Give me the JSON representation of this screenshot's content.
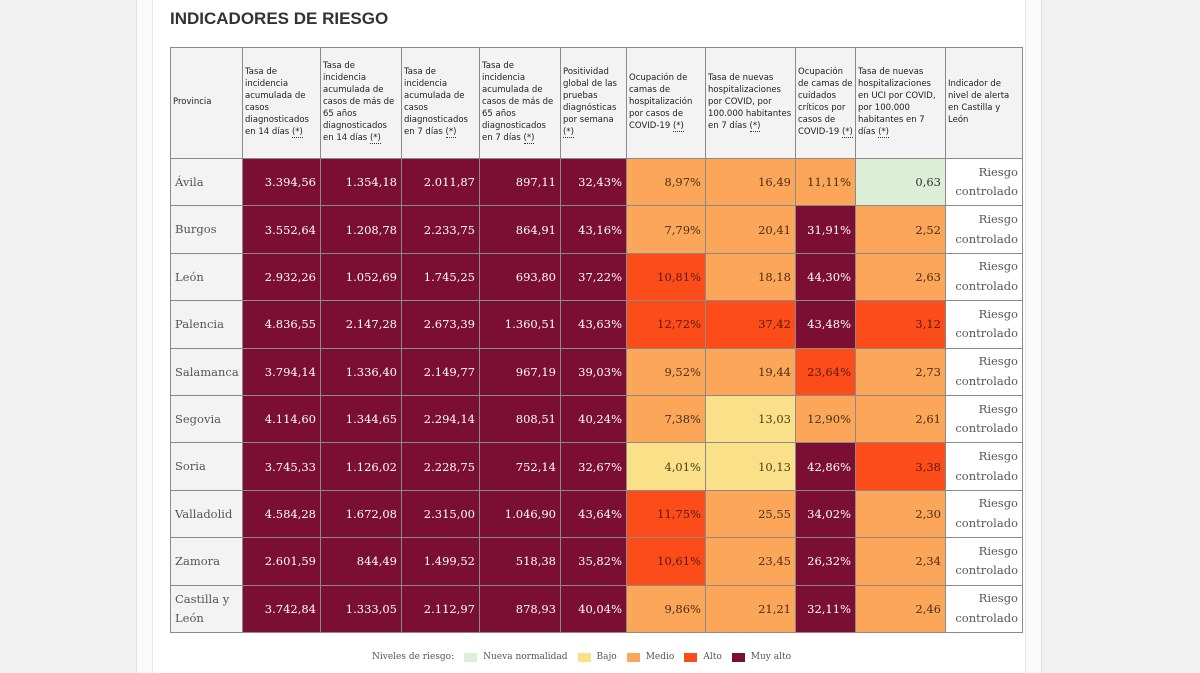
{
  "title": "INDICADORES DE RIESGO",
  "colors": {
    "nueva_normalidad": "#dcefd6",
    "bajo": "#fbe08a",
    "medio": "#fba659",
    "alto": "#fb4c1a",
    "muy_alto": "#7b0e33"
  },
  "headers": [
    {
      "text": "Provincia",
      "ast": ""
    },
    {
      "text": "Tasa de incidencia acumulada de casos diagnosticados en 14 días ",
      "ast": "(*)"
    },
    {
      "text": "Tasa de incidencia acumulada de casos de más de 65 años diagnosticados en 14 días ",
      "ast": "(*)"
    },
    {
      "text": "Tasa de incidencia acumulada de casos diagnosticados en 7 días ",
      "ast": "(*)"
    },
    {
      "text": "Tasa de incidencia acumulada de casos de más de 65 años diagnosticados en 7 días ",
      "ast": "(*)"
    },
    {
      "text": "Positividad global de las pruebas diagnósticas por semana ",
      "ast": "(*)"
    },
    {
      "text": "Ocupación de camas de hospitalización por casos de COVID-19 ",
      "ast": "(*)"
    },
    {
      "text": "Tasa de nuevas hospitalizaciones por COVID, por 100.000 habitantes en 7 días ",
      "ast": "(*)"
    },
    {
      "text": "Ocupación de camas de cuidados críticos por casos de COVID-19 ",
      "ast": "(*)"
    },
    {
      "text": "Tasa de nuevas hospitalizaciones en UCI por COVID, por 100.000 habitantes en 7 días ",
      "ast": "(*)"
    },
    {
      "text": "Indicador de nivel de alerta en Castilla y León",
      "ast": ""
    }
  ],
  "rows": [
    {
      "provincia": "Ávila",
      "alerta": "Riesgo controlado",
      "cells": [
        {
          "v": "3.394,56",
          "l": "muyalto"
        },
        {
          "v": "1.354,18",
          "l": "muyalto"
        },
        {
          "v": "2.011,87",
          "l": "muyalto"
        },
        {
          "v": "897,11",
          "l": "muyalto"
        },
        {
          "v": "32,43%",
          "l": "muyalto"
        },
        {
          "v": "8,97%",
          "l": "medio"
        },
        {
          "v": "16,49",
          "l": "medio"
        },
        {
          "v": "11,11%",
          "l": "medio"
        },
        {
          "v": "0,63",
          "l": "nueva"
        }
      ]
    },
    {
      "provincia": "Burgos",
      "alerta": "Riesgo controlado",
      "cells": [
        {
          "v": "3.552,64",
          "l": "muyalto"
        },
        {
          "v": "1.208,78",
          "l": "muyalto"
        },
        {
          "v": "2.233,75",
          "l": "muyalto"
        },
        {
          "v": "864,91",
          "l": "muyalto"
        },
        {
          "v": "43,16%",
          "l": "muyalto"
        },
        {
          "v": "7,79%",
          "l": "medio"
        },
        {
          "v": "20,41",
          "l": "medio"
        },
        {
          "v": "31,91%",
          "l": "muyalto"
        },
        {
          "v": "2,52",
          "l": "medio"
        }
      ]
    },
    {
      "provincia": "León",
      "alerta": "Riesgo controlado",
      "cells": [
        {
          "v": "2.932,26",
          "l": "muyalto"
        },
        {
          "v": "1.052,69",
          "l": "muyalto"
        },
        {
          "v": "1.745,25",
          "l": "muyalto"
        },
        {
          "v": "693,80",
          "l": "muyalto"
        },
        {
          "v": "37,22%",
          "l": "muyalto"
        },
        {
          "v": "10,81%",
          "l": "alto"
        },
        {
          "v": "18,18",
          "l": "medio"
        },
        {
          "v": "44,30%",
          "l": "muyalto"
        },
        {
          "v": "2,63",
          "l": "medio"
        }
      ]
    },
    {
      "provincia": "Palencia",
      "alerta": "Riesgo controlado",
      "cells": [
        {
          "v": "4.836,55",
          "l": "muyalto"
        },
        {
          "v": "2.147,28",
          "l": "muyalto"
        },
        {
          "v": "2.673,39",
          "l": "muyalto"
        },
        {
          "v": "1.360,51",
          "l": "muyalto"
        },
        {
          "v": "43,63%",
          "l": "muyalto"
        },
        {
          "v": "12,72%",
          "l": "alto"
        },
        {
          "v": "37,42",
          "l": "alto"
        },
        {
          "v": "43,48%",
          "l": "muyalto"
        },
        {
          "v": "3,12",
          "l": "alto"
        }
      ]
    },
    {
      "provincia": "Salamanca",
      "alerta": "Riesgo controlado",
      "cells": [
        {
          "v": "3.794,14",
          "l": "muyalto"
        },
        {
          "v": "1.336,40",
          "l": "muyalto"
        },
        {
          "v": "2.149,77",
          "l": "muyalto"
        },
        {
          "v": "967,19",
          "l": "muyalto"
        },
        {
          "v": "39,03%",
          "l": "muyalto"
        },
        {
          "v": "9,52%",
          "l": "medio"
        },
        {
          "v": "19,44",
          "l": "medio"
        },
        {
          "v": "23,64%",
          "l": "alto"
        },
        {
          "v": "2,73",
          "l": "medio"
        }
      ]
    },
    {
      "provincia": "Segovia",
      "alerta": "Riesgo controlado",
      "cells": [
        {
          "v": "4.114,60",
          "l": "muyalto"
        },
        {
          "v": "1.344,65",
          "l": "muyalto"
        },
        {
          "v": "2.294,14",
          "l": "muyalto"
        },
        {
          "v": "808,51",
          "l": "muyalto"
        },
        {
          "v": "40,24%",
          "l": "muyalto"
        },
        {
          "v": "7,38%",
          "l": "medio"
        },
        {
          "v": "13,03",
          "l": "bajo"
        },
        {
          "v": "12,90%",
          "l": "medio"
        },
        {
          "v": "2,61",
          "l": "medio"
        }
      ]
    },
    {
      "provincia": "Soria",
      "alerta": "Riesgo controlado",
      "cells": [
        {
          "v": "3.745,33",
          "l": "muyalto"
        },
        {
          "v": "1.126,02",
          "l": "muyalto"
        },
        {
          "v": "2.228,75",
          "l": "muyalto"
        },
        {
          "v": "752,14",
          "l": "muyalto"
        },
        {
          "v": "32,67%",
          "l": "muyalto"
        },
        {
          "v": "4,01%",
          "l": "bajo"
        },
        {
          "v": "10,13",
          "l": "bajo"
        },
        {
          "v": "42,86%",
          "l": "muyalto"
        },
        {
          "v": "3,38",
          "l": "alto"
        }
      ]
    },
    {
      "provincia": "Valladolid",
      "alerta": "Riesgo controlado",
      "cells": [
        {
          "v": "4.584,28",
          "l": "muyalto"
        },
        {
          "v": "1.672,08",
          "l": "muyalto"
        },
        {
          "v": "2.315,00",
          "l": "muyalto"
        },
        {
          "v": "1.046,90",
          "l": "muyalto"
        },
        {
          "v": "43,64%",
          "l": "muyalto"
        },
        {
          "v": "11,75%",
          "l": "alto"
        },
        {
          "v": "25,55",
          "l": "medio"
        },
        {
          "v": "34,02%",
          "l": "muyalto"
        },
        {
          "v": "2,30",
          "l": "medio"
        }
      ]
    },
    {
      "provincia": "Zamora",
      "alerta": "Riesgo controlado",
      "cells": [
        {
          "v": "2.601,59",
          "l": "muyalto"
        },
        {
          "v": "844,49",
          "l": "muyalto"
        },
        {
          "v": "1.499,52",
          "l": "muyalto"
        },
        {
          "v": "518,38",
          "l": "muyalto"
        },
        {
          "v": "35,82%",
          "l": "muyalto"
        },
        {
          "v": "10,61%",
          "l": "alto"
        },
        {
          "v": "23,45",
          "l": "medio"
        },
        {
          "v": "26,32%",
          "l": "muyalto"
        },
        {
          "v": "2,34",
          "l": "medio"
        }
      ]
    },
    {
      "provincia": "Castilla y León",
      "alerta": "Riesgo controlado",
      "cells": [
        {
          "v": "3.742,84",
          "l": "muyalto"
        },
        {
          "v": "1.333,05",
          "l": "muyalto"
        },
        {
          "v": "2.112,97",
          "l": "muyalto"
        },
        {
          "v": "878,93",
          "l": "muyalto"
        },
        {
          "v": "40,04%",
          "l": "muyalto"
        },
        {
          "v": "9,86%",
          "l": "medio"
        },
        {
          "v": "21,21",
          "l": "medio"
        },
        {
          "v": "32,11%",
          "l": "muyalto"
        },
        {
          "v": "2,46",
          "l": "medio"
        }
      ]
    }
  ],
  "legend": {
    "label": "Niveles de riesgo:",
    "items": [
      {
        "name": "Nueva normalidad",
        "l": "nueva"
      },
      {
        "name": "Bajo",
        "l": "bajo"
      },
      {
        "name": "Medio",
        "l": "medio"
      },
      {
        "name": "Alto",
        "l": "alto"
      },
      {
        "name": "Muy alto",
        "l": "muyalto"
      }
    ]
  }
}
